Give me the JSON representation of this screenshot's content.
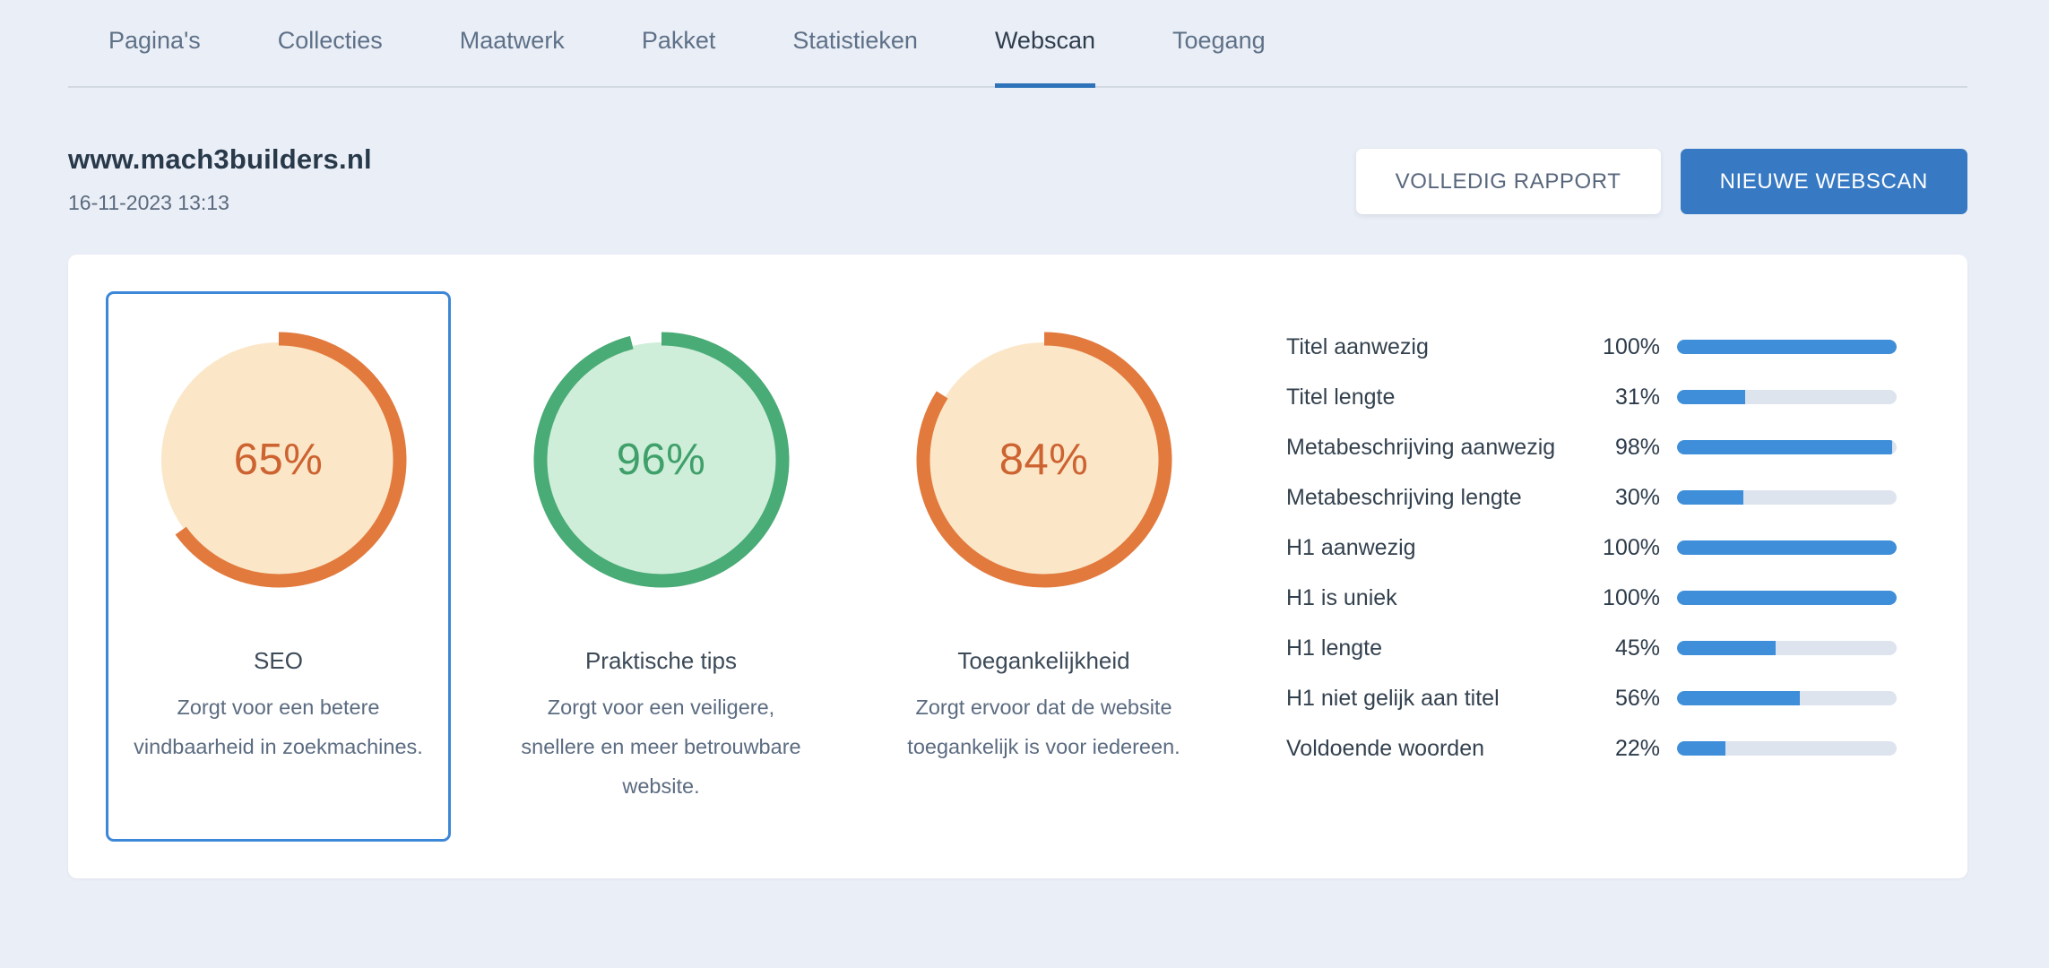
{
  "tabs": [
    {
      "label": "Pagina's",
      "active": false
    },
    {
      "label": "Collecties",
      "active": false
    },
    {
      "label": "Maatwerk",
      "active": false
    },
    {
      "label": "Pakket",
      "active": false
    },
    {
      "label": "Statistieken",
      "active": false
    },
    {
      "label": "Webscan",
      "active": true
    },
    {
      "label": "Toegang",
      "active": false
    }
  ],
  "header": {
    "site": "www.mach3builders.nl",
    "date": "16-11-2023 13:13"
  },
  "buttons": {
    "full_report": "VOLLEDIG RAPPORT",
    "new_scan": "NIEUWE WEBSCAN"
  },
  "colors": {
    "page_bg": "#eaeef6",
    "card_bg": "#ffffff",
    "tab_underline": "#2e73b9",
    "button_blue": "#3779c3",
    "selected_border": "#3d87d8",
    "bar_fill": "#3e8ed9",
    "bar_track": "#dde4ee",
    "themes": {
      "orange": {
        "ring": "#e27a3e",
        "fill": "#fbe7c8",
        "text": "#cd6330"
      },
      "green": {
        "ring": "#49ab75",
        "fill": "#cfeeda",
        "text": "#3fa06a"
      }
    }
  },
  "gauges": [
    {
      "id": "seo",
      "pct": 65,
      "pct_label": "65%",
      "title": "SEO",
      "description": "Zorgt voor een betere vindbaarheid in zoekmachines.",
      "theme": "orange",
      "selected": true
    },
    {
      "id": "praktische-tips",
      "pct": 96,
      "pct_label": "96%",
      "title": "Praktische tips",
      "description": "Zorgt voor een veiligere, snellere en meer betrouwbare website.",
      "theme": "green",
      "selected": false
    },
    {
      "id": "toegankelijkheid",
      "pct": 84,
      "pct_label": "84%",
      "title": "Toegankelijkheid",
      "description": "Zorgt ervoor dat de website toegankelijk is voor iedereen.",
      "theme": "orange",
      "selected": false
    }
  ],
  "metrics": {
    "rows": [
      {
        "label": "Titel aanwezig",
        "pct": 100,
        "pct_label": "100%"
      },
      {
        "label": "Titel lengte",
        "pct": 31,
        "pct_label": "31%"
      },
      {
        "label": "Metabeschrijving aanwezig",
        "pct": 98,
        "pct_label": "98%"
      },
      {
        "label": "Metabeschrijving lengte",
        "pct": 30,
        "pct_label": "30%"
      },
      {
        "label": "H1 aanwezig",
        "pct": 100,
        "pct_label": "100%"
      },
      {
        "label": "H1 is uniek",
        "pct": 100,
        "pct_label": "100%"
      },
      {
        "label": "H1 lengte",
        "pct": 45,
        "pct_label": "45%"
      },
      {
        "label": "H1 niet gelijk aan titel",
        "pct": 56,
        "pct_label": "56%"
      },
      {
        "label": "Voldoende woorden",
        "pct": 22,
        "pct_label": "22%"
      }
    ]
  }
}
